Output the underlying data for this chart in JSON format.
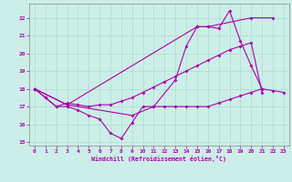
{
  "background_color": "#cceee8",
  "grid_color": "#aaddcc",
  "line_color": "#aa00aa",
  "x_label": "Windchill (Refroidissement éolien,°C)",
  "xlim": [
    -0.5,
    23.5
  ],
  "ylim": [
    14.8,
    22.8
  ],
  "yticks": [
    15,
    16,
    17,
    18,
    19,
    20,
    21,
    22
  ],
  "xticks": [
    0,
    1,
    2,
    3,
    4,
    5,
    6,
    7,
    8,
    9,
    10,
    11,
    12,
    13,
    14,
    15,
    16,
    17,
    18,
    19,
    20,
    21,
    22,
    23
  ],
  "series1_x": [
    0,
    1,
    2,
    3,
    4,
    5,
    6,
    7,
    8,
    9,
    10,
    11,
    12,
    13,
    14,
    15,
    16,
    17,
    18,
    19,
    20,
    21,
    22,
    23
  ],
  "series1_y": [
    18.0,
    17.5,
    17.0,
    17.0,
    16.8,
    16.5,
    16.3,
    15.5,
    15.2,
    16.1,
    17.0,
    17.0,
    17.0,
    17.0,
    17.0,
    17.0,
    17.0,
    17.2,
    17.4,
    17.6,
    17.8,
    18.0,
    17.9,
    17.8
  ],
  "series2_x": [
    0,
    1,
    2,
    3,
    4,
    5,
    6,
    7,
    8,
    9,
    10,
    11,
    12,
    13,
    14,
    15,
    16,
    17,
    18,
    19,
    20,
    21,
    22,
    23
  ],
  "series2_y": [
    18.0,
    17.5,
    17.0,
    17.2,
    17.1,
    17.0,
    17.1,
    17.1,
    17.3,
    17.5,
    17.8,
    18.1,
    18.4,
    18.7,
    19.0,
    19.3,
    19.6,
    19.9,
    20.2,
    20.4,
    20.6,
    17.8,
    null,
    null
  ],
  "series3_x": [
    0,
    3,
    9,
    11,
    13,
    14,
    15,
    16,
    17,
    18,
    19,
    20,
    21
  ],
  "series3_y": [
    18.0,
    17.1,
    16.5,
    17.0,
    18.5,
    20.4,
    21.5,
    21.5,
    21.4,
    22.4,
    20.7,
    19.3,
    18.0
  ],
  "series4_x": [
    0,
    3,
    15,
    16,
    20,
    22
  ],
  "series4_y": [
    18.0,
    17.1,
    21.5,
    21.5,
    22.0,
    22.0
  ]
}
